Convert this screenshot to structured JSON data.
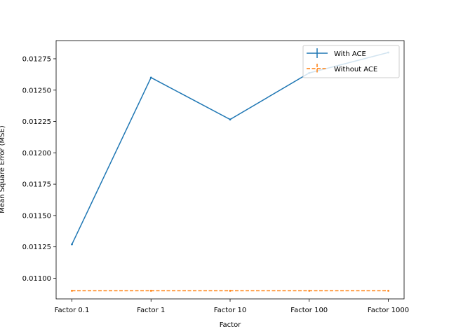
{
  "chart_data": {
    "type": "line",
    "title": "",
    "xlabel": "Factor",
    "ylabel": "Mean Square Error (MSE)",
    "categories": [
      "Factor 0.1",
      "Factor 1",
      "Factor 10",
      "Factor 100",
      "Factor 1000"
    ],
    "ylim": [
      0.010835,
      0.012895
    ],
    "yticks": [
      0.011,
      0.01125,
      0.0115,
      0.01175,
      0.012,
      0.01225,
      0.0125,
      0.01275
    ],
    "ytick_labels": [
      "0.01100",
      "0.01125",
      "0.01150",
      "0.01175",
      "0.01200",
      "0.01225",
      "0.01250",
      "0.01275"
    ],
    "grid": false,
    "legend_position": "top-right",
    "series": [
      {
        "name": "With ACE",
        "values": [
          0.01127,
          0.0126,
          0.012266,
          0.012637,
          0.0128
        ],
        "color": "#1f77b4",
        "style": "solid"
      },
      {
        "name": "Without ACE",
        "values": [
          0.0109,
          0.0109,
          0.0109,
          0.0109,
          0.0109
        ],
        "color": "#ff7f0e",
        "style": "dashed"
      }
    ]
  }
}
